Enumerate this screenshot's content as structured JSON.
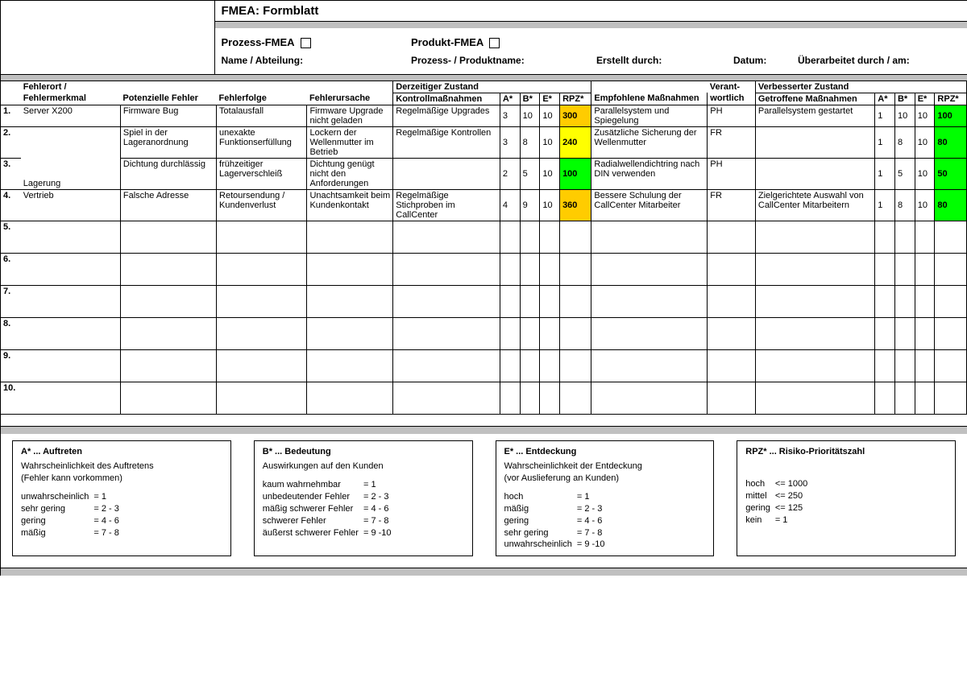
{
  "title": "FMEA: Formblatt",
  "header": {
    "type_prozess_label": "Prozess-FMEA",
    "type_produkt_label": "Produkt-FMEA",
    "field_name": "Name / Abteilung:",
    "field_process": "Prozess- / Produktname:",
    "field_creator": "Erstellt durch:",
    "field_date": "Datum:",
    "field_revised": "Überarbeitet durch / am:"
  },
  "columns": {
    "row_no": "",
    "fehlerort": "Fehlerort /",
    "fehlermerkmal": "Fehlermerkmal",
    "pot_fehler": "Potenzielle Fehler",
    "fehlerfolge": "Fehlerfolge",
    "fehlerursache": "Fehlerursache",
    "kontroll": "Kontrollmaßnahmen",
    "a": "A*",
    "b": "B*",
    "e": "E*",
    "rpz": "RPZ*",
    "empfohlene": "Empfohlene Maßnahmen",
    "verantwortlich_top": "Verant-",
    "verantwortlich_bot": "wortlich",
    "getroffene": "Getroffene Maßnahmen",
    "group_current": "Derzeitiger Zustand",
    "group_improved": "Verbesserter Zustand"
  },
  "colors": {
    "grey": "#c0c0c0",
    "orange": "#ffcc00",
    "yellow": "#ffff00",
    "green": "#00ff00"
  },
  "rows": [
    {
      "num": "1.",
      "fehlerort": "Server X200",
      "pot_fehler": "Firmware Bug",
      "fehlerfolge": "Totalausfall",
      "fehlerursache": "Firmware Upgrade nicht geladen",
      "kontroll": "Regelmäßige Upgrades",
      "a1": "3",
      "b1": "10",
      "e1": "10",
      "rpz1": "300",
      "rpz1_color": "hl-orange",
      "empfohlene": "Parallelsystem und Spiegelung",
      "verant": "PH",
      "getroffene": "Parallelsystem gestartet",
      "a2": "1",
      "b2": "10",
      "e2": "10",
      "rpz2": "100",
      "rpz2_color": "hl-green",
      "ort_rowspan": 1,
      "bottom": true
    },
    {
      "num": "2.",
      "fehlerort": "Lagerung",
      "ort_rowspan": 2,
      "pot_fehler": "Spiel in der Lageranordnung",
      "fehlerfolge": "unexakte Funktionserfüllung",
      "fehlerursache": "Lockern der Wellenmutter im Betrieb",
      "kontroll": "Regelmäßige Kontrollen",
      "a1": "3",
      "b1": "8",
      "e1": "10",
      "rpz1": "240",
      "rpz1_color": "hl-yellow",
      "empfohlene": "Zusätzliche Sicherung der Wellenmutter",
      "verant": "FR",
      "getroffene": "",
      "a2": "1",
      "b2": "8",
      "e2": "10",
      "rpz2": "80",
      "rpz2_color": "hl-green",
      "bottom": true
    },
    {
      "num": "3.",
      "pot_fehler": "Dichtung durchlässig",
      "fehlerfolge": "frühzeitiger Lagerverschleiß",
      "fehlerursache": "Dichtung genügt nicht den Anforderungen",
      "kontroll": "",
      "a1": "2",
      "b1": "5",
      "e1": "10",
      "rpz1": "100",
      "rpz1_color": "hl-green",
      "empfohlene": "Radialwellendichtring nach DIN verwenden",
      "verant": "PH",
      "getroffene": "",
      "a2": "1",
      "b2": "5",
      "e2": "10",
      "rpz2": "50",
      "rpz2_color": "hl-green",
      "bottom": true
    },
    {
      "num": "4.",
      "fehlerort": "Vertrieb",
      "ort_rowspan": 1,
      "pot_fehler": "Falsche Adresse",
      "fehlerfolge": "Retoursendung / Kundenverlust",
      "fehlerursache": "Unachtsamkeit beim Kundenkontakt",
      "kontroll": "Regelmäßige Stichproben im CallCenter",
      "a1": "4",
      "b1": "9",
      "e1": "10",
      "rpz1": "360",
      "rpz1_color": "hl-orange",
      "empfohlene": "Bessere Schulung der CallCenter Mitarbeiter",
      "verant": "FR",
      "getroffene": "Zielgerichtete Auswahl von CallCenter Mitarbeitern",
      "a2": "1",
      "b2": "8",
      "e2": "10",
      "rpz2": "80",
      "rpz2_color": "hl-green",
      "bottom": true
    },
    {
      "num": "5.",
      "empty": true
    },
    {
      "num": "6.",
      "empty": true
    },
    {
      "num": "7.",
      "empty": true
    },
    {
      "num": "8.",
      "empty": true
    },
    {
      "num": "9.",
      "empty": true
    },
    {
      "num": "10.",
      "empty": true
    }
  ],
  "legend": {
    "a": {
      "title": "A* ... Auftreten",
      "desc": "Wahrscheinlichkeit des Auftretens\n(Fehler kann vorkommen)",
      "items": [
        [
          "unwahrscheinlich",
          "= 1"
        ],
        [
          "sehr gering",
          "= 2 - 3"
        ],
        [
          "gering",
          "= 4 - 6"
        ],
        [
          "mäßig",
          "= 7 - 8"
        ]
      ]
    },
    "b": {
      "title": "B* ... Bedeutung",
      "desc": "Auswirkungen auf den Kunden",
      "items": [
        [
          "kaum wahrnehmbar",
          "= 1"
        ],
        [
          "unbedeutender Fehler",
          "= 2 - 3"
        ],
        [
          "mäßig schwerer Fehler",
          "= 4 - 6"
        ],
        [
          "schwerer Fehler",
          "= 7 - 8"
        ],
        [
          "äußerst schwerer Fehler",
          "= 9 -10"
        ]
      ]
    },
    "e": {
      "title": "E* ... Entdeckung",
      "desc": "Wahrscheinlichkeit der Entdeckung\n(vor Auslieferung an Kunden)",
      "items": [
        [
          "hoch",
          "= 1"
        ],
        [
          "mäßig",
          "= 2 - 3"
        ],
        [
          "gering",
          "= 4 - 6"
        ],
        [
          "sehr gering",
          "= 7 - 8"
        ],
        [
          "unwahrscheinlich",
          "= 9 -10"
        ]
      ]
    },
    "rpz": {
      "title": "RPZ* ... Risiko-Prioritätszahl",
      "desc": "",
      "items": [
        [
          "hoch",
          "<= 1000"
        ],
        [
          "mittel",
          "<= 250"
        ],
        [
          "gering",
          "<= 125"
        ],
        [
          "kein",
          "= 1"
        ]
      ]
    }
  }
}
